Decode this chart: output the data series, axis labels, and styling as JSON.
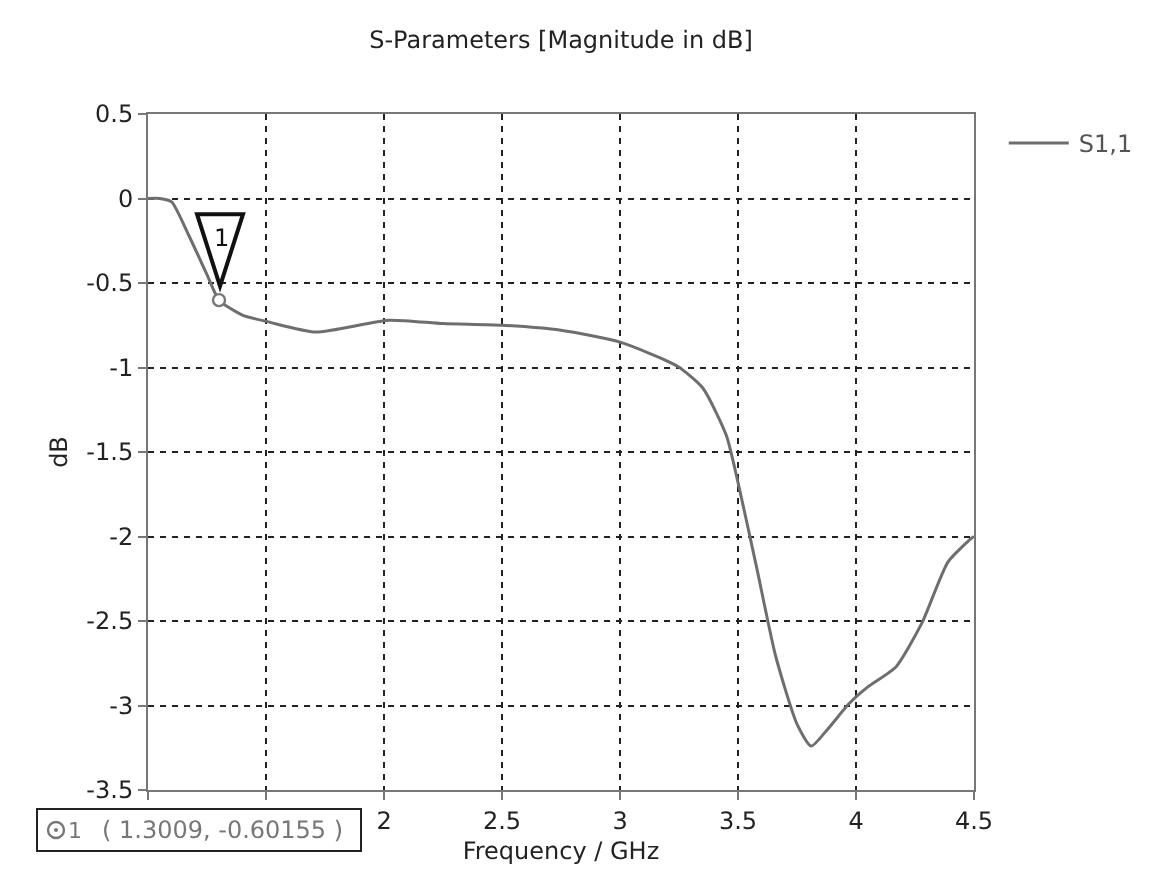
{
  "chart_data": {
    "type": "line",
    "title": "S-Parameters [Magnitude in dB]",
    "xlabel": "Frequency / GHz",
    "ylabel": "dB",
    "series": [
      {
        "name": "S1,1",
        "color": "#6e6e6e",
        "x": [
          1,
          1.05,
          1.1,
          1.17,
          1.25,
          1.3009,
          1.4,
          1.51,
          1.71,
          2.02,
          2.25,
          2.5,
          2.75,
          3,
          3.24,
          3.35,
          3.45,
          3.5,
          3.58,
          3.66,
          3.75,
          3.81,
          3.88,
          3.97,
          4.05,
          4.17,
          4.28,
          4.39,
          4.49,
          4.5
        ],
        "values": [
          0,
          0,
          -0.02,
          -0.21,
          -0.45,
          -0.60155,
          -0.69,
          -0.73,
          -0.79,
          -0.72,
          -0.74,
          -0.75,
          -0.78,
          -0.85,
          -0.99,
          -1.12,
          -1.4,
          -1.68,
          -2.19,
          -2.71,
          -3.11,
          -3.24,
          -3.14,
          -2.99,
          -2.89,
          -2.77,
          -2.51,
          -2.15,
          -2.01,
          -2.0
        ]
      }
    ],
    "xlim": [
      1,
      4.5
    ],
    "xticks": [
      {
        "value": 1,
        "label": null
      },
      {
        "value": 1.5,
        "label": null
      },
      2,
      2.5,
      3,
      3.5,
      4,
      4.5
    ],
    "ylim": [
      -3.5,
      0.5
    ],
    "yticks": [
      -3.5,
      -3,
      -2.5,
      -2,
      -1.5,
      -1,
      -0.5,
      0,
      0.5
    ],
    "grid": true,
    "legend": "top right",
    "marker": "none",
    "line_style": "solid",
    "annotations": [
      {
        "text": "1",
        "x": 1.3009,
        "y": -0.60155
      },
      "( 1.3009, -0.60155 )"
    ]
  }
}
